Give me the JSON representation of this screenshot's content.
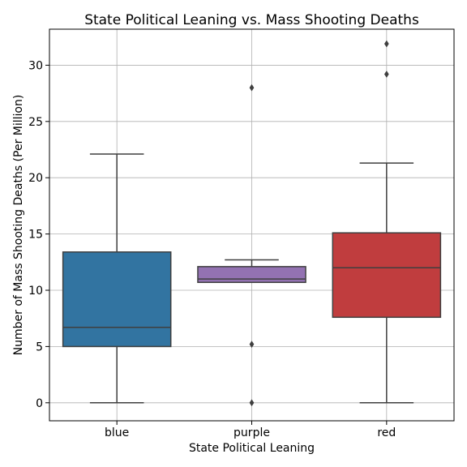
{
  "chart_data": {
    "type": "box",
    "title": "State Political Leaning vs. Mass Shooting Deaths",
    "xlabel": "State Political Leaning",
    "ylabel": "Number of Mass Shooting Deaths (Per Million)",
    "ylim": [
      -1.6,
      33.2
    ],
    "yticks": [
      0,
      5,
      10,
      15,
      20,
      25,
      30
    ],
    "grid": true,
    "categories": [
      "blue",
      "purple",
      "red"
    ],
    "boxes": [
      {
        "category": "blue",
        "color": "#3274a1",
        "whisker_low": 0.0,
        "q1": 5.0,
        "median": 6.7,
        "q3": 13.4,
        "whisker_high": 22.1,
        "outliers": []
      },
      {
        "category": "purple",
        "color": "#9372b2",
        "whisker_low": 10.7,
        "q1": 10.7,
        "median": 11.0,
        "q3": 12.1,
        "whisker_high": 12.7,
        "outliers": [
          28.0,
          5.2,
          0.0
        ]
      },
      {
        "category": "red",
        "color": "#c03d3e",
        "whisker_low": 0.0,
        "q1": 7.6,
        "median": 12.0,
        "q3": 15.1,
        "whisker_high": 21.3,
        "outliers": [
          31.9,
          29.2
        ]
      }
    ]
  }
}
